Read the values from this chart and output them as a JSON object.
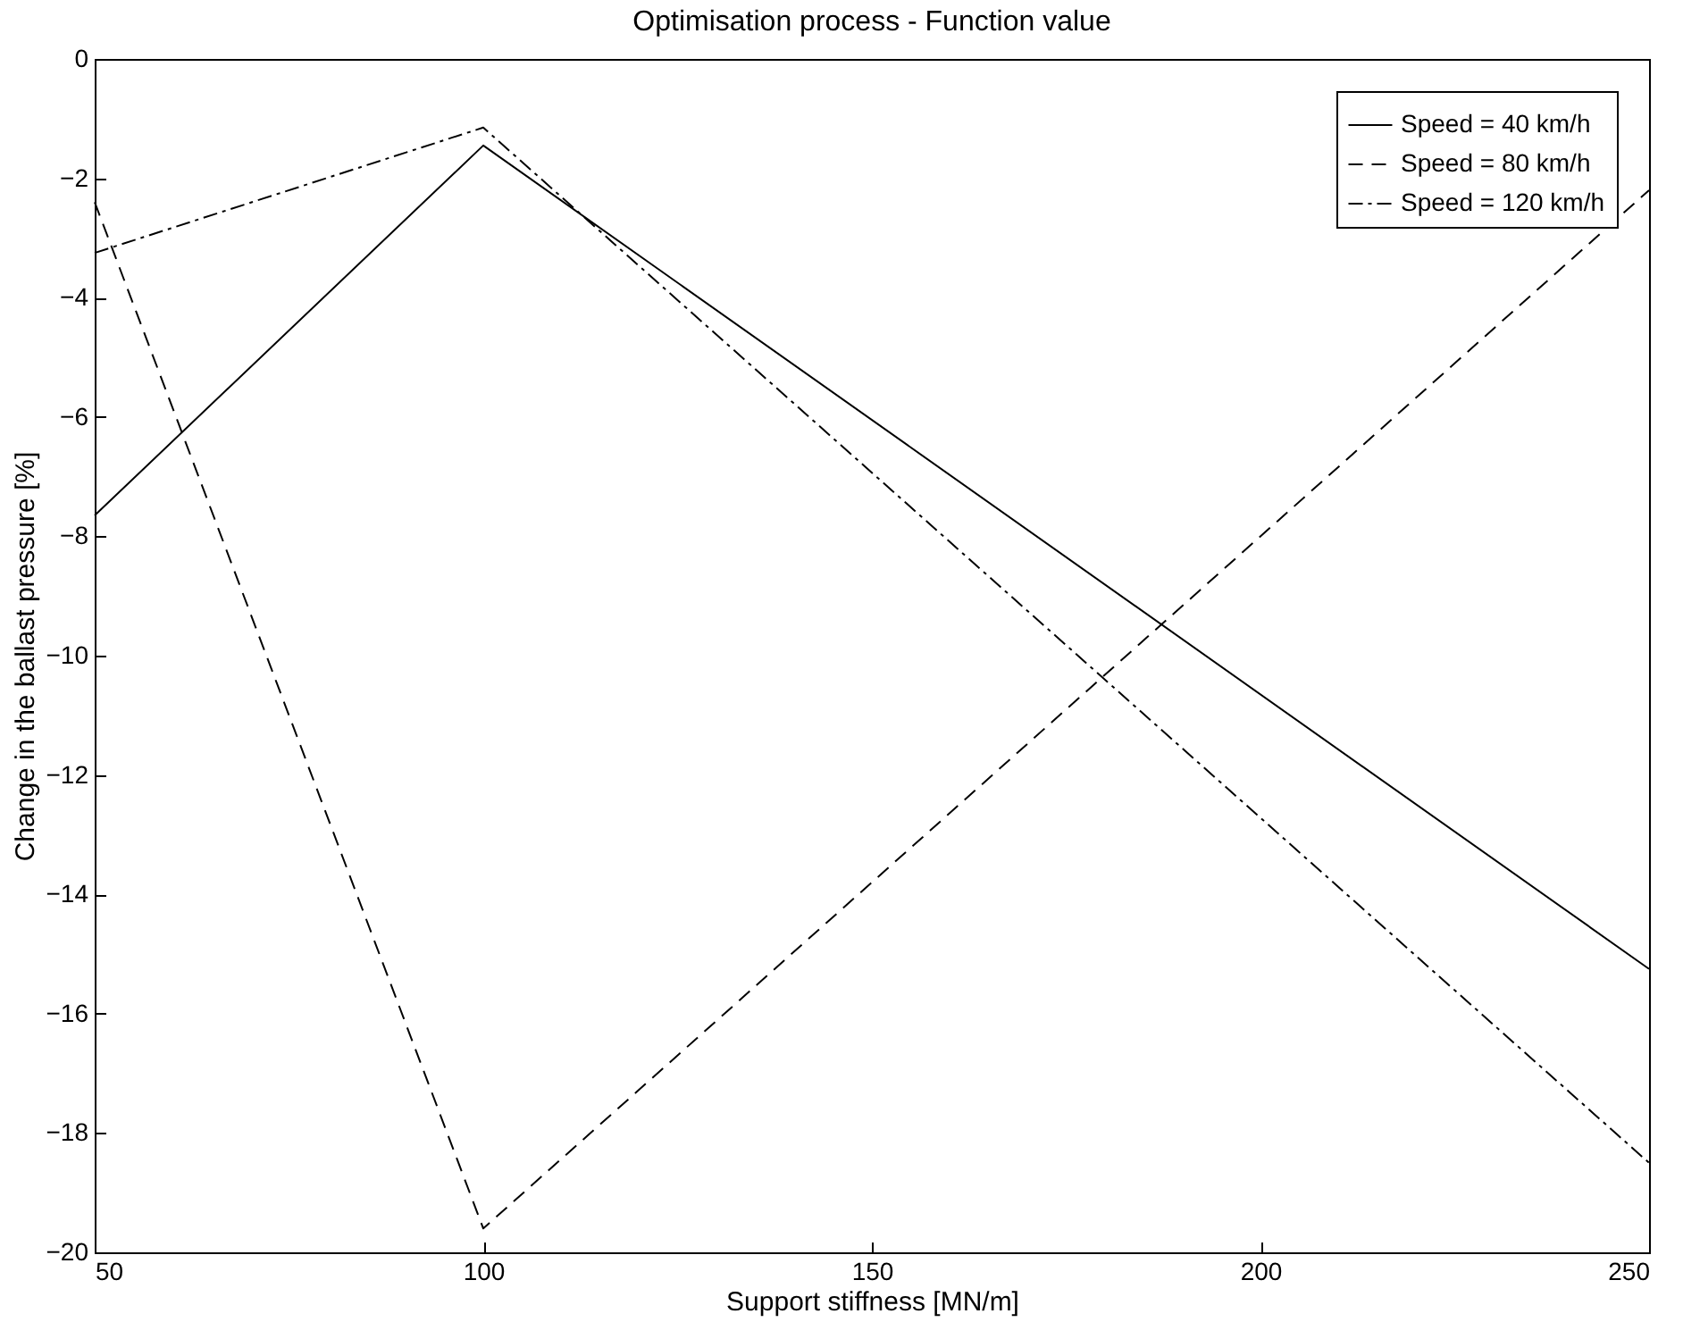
{
  "chart_data": {
    "type": "line",
    "title": "Optimisation process - Function value",
    "xlabel": "Support stiffness [MN/m]",
    "ylabel": "Change in the ballast pressure [%]",
    "x": [
      50,
      100,
      250
    ],
    "series": [
      {
        "name": "Speed = 40 km/h",
        "color": "#000000",
        "line_style": "solid",
        "values": [
          -7.65,
          -1.45,
          -15.25
        ]
      },
      {
        "name": "Speed = 80 km/h",
        "color": "#000000",
        "line_style": "dashed",
        "values": [
          -2.4,
          -19.6,
          -2.2
        ]
      },
      {
        "name": "Speed = 120 km/h",
        "color": "#000000",
        "line_style": "dashdot",
        "values": [
          -3.25,
          -1.15,
          -18.5
        ]
      }
    ],
    "xlim": [
      50,
      250
    ],
    "xticks": [
      50,
      100,
      150,
      200,
      250
    ],
    "ylim": [
      -20,
      0
    ],
    "yticks": [
      -20,
      -18,
      -16,
      -14,
      -12,
      -10,
      -8,
      -6,
      -4,
      -2,
      0
    ],
    "grid": false,
    "legend": "top right",
    "marker": "none"
  }
}
